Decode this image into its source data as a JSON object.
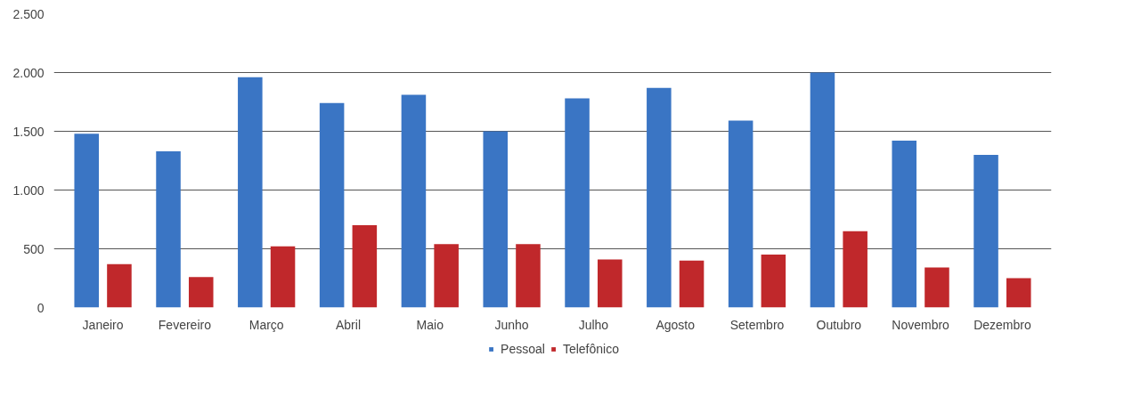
{
  "chart_data": {
    "type": "bar",
    "categories": [
      "Janeiro",
      "Fevereiro",
      "Março",
      "Abril",
      "Maio",
      "Junho",
      "Julho",
      "Agosto",
      "Setembro",
      "Outubro",
      "Novembro",
      "Dezembro"
    ],
    "series": [
      {
        "name": "Pessoal",
        "color": "#3a75c4",
        "values": [
          1480,
          1330,
          1960,
          1740,
          1810,
          1500,
          1780,
          1870,
          1590,
          2000,
          1420,
          1300
        ]
      },
      {
        "name": "Telefônico",
        "color": "#c0282b",
        "values": [
          370,
          260,
          520,
          700,
          540,
          540,
          410,
          400,
          450,
          650,
          340,
          250
        ]
      }
    ],
    "ylim": [
      0,
      2500
    ],
    "yticks": [
      0,
      {
        "value": 500,
        "label": "500"
      },
      {
        "value": 1000,
        "label": "1.000"
      },
      {
        "value": 1500,
        "label": "1.500"
      },
      {
        "value": 2000,
        "label": "2.000"
      },
      {
        "value": 2500,
        "label": "2.500"
      }
    ],
    "grid": "y",
    "legend": "bottom"
  }
}
